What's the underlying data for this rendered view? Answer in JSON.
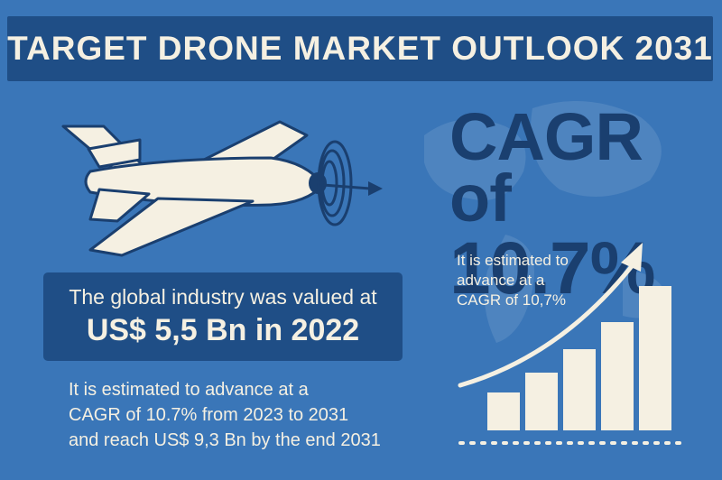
{
  "title": "TARGET DRONE MARKET OUTLOOK 2031",
  "valuation": {
    "line1": "The global industry was valued at",
    "line2": "US$ 5,5 Bn in 2022"
  },
  "description": [
    "It is estimated to advance at a",
    "CAGR of 10.7% from 2023 to 2031",
    "and reach US$ 9,3 Bn by the end 2031"
  ],
  "cagr": {
    "line1": "CAGR of",
    "line2": "10.7%",
    "note": [
      "It is estimated to",
      "advance at a",
      "CAGR of 10,7%"
    ]
  },
  "growth_bars": [
    1,
    2,
    3,
    4,
    5
  ],
  "icons": {
    "drone": "drone-icon",
    "growth": "growth-chart-icon",
    "map": "world-map-icon"
  },
  "colors": {
    "background": "#3a76b8",
    "banner": "#1f4e86",
    "cream": "#f5f0e2",
    "dark_navy": "#1a3f6f"
  }
}
